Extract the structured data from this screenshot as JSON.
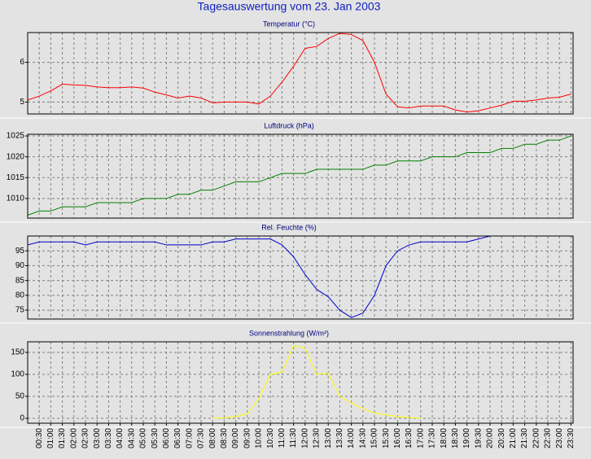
{
  "title": "Tagesauswertung vom 23. Jan 2003",
  "chart_data": [
    {
      "type": "line",
      "title": "Temperatur (°C)",
      "color": "#ff0000",
      "ylim": [
        4.7,
        6.75
      ],
      "yticks": [
        5,
        6
      ],
      "grid": true,
      "values": [
        5.05,
        5.15,
        5.28,
        5.45,
        5.43,
        5.42,
        5.38,
        5.36,
        5.36,
        5.38,
        5.35,
        5.25,
        5.18,
        5.1,
        5.15,
        5.1,
        4.98,
        5.0,
        5.0,
        5.0,
        4.95,
        5.15,
        5.5,
        5.9,
        6.35,
        6.4,
        6.6,
        6.73,
        6.7,
        6.55,
        6.0,
        5.2,
        4.88,
        4.85,
        4.9,
        4.9,
        4.9,
        4.8,
        4.75,
        4.78,
        4.85,
        4.92,
        5.02,
        5.02,
        5.05,
        5.1,
        5.12,
        5.2
      ]
    },
    {
      "type": "line",
      "title": "Luftdruck (hPa)",
      "color": "#008000",
      "ylim": [
        1005.3,
        1025.4
      ],
      "yticks": [
        1010,
        1015,
        1020,
        1025
      ],
      "grid": true,
      "values": [
        1006,
        1007,
        1007,
        1008,
        1008,
        1008,
        1009,
        1009,
        1009,
        1009,
        1010,
        1010,
        1010,
        1011,
        1011,
        1012,
        1012,
        1013,
        1014,
        1014,
        1014,
        1015,
        1016,
        1016,
        1016,
        1017,
        1017,
        1017,
        1017,
        1017,
        1018,
        1018,
        1019,
        1019,
        1019,
        1020,
        1020,
        1020,
        1021,
        1021,
        1021,
        1022,
        1022,
        1023,
        1023,
        1024,
        1024,
        1025
      ]
    },
    {
      "type": "line",
      "title": "Rel. Feuchte (%)",
      "color": "#0000cc",
      "ylim": [
        72,
        100
      ],
      "yticks": [
        75,
        80,
        85,
        90,
        95
      ],
      "grid": true,
      "values": [
        97,
        98,
        98,
        98,
        98,
        97,
        98,
        98,
        98,
        98,
        98,
        98,
        97,
        97,
        97,
        97,
        98,
        98,
        99,
        99,
        99,
        99,
        97,
        93,
        87,
        82,
        79.5,
        75,
        72.5,
        74,
        80,
        90,
        95,
        97,
        98,
        98,
        98,
        98,
        98,
        99,
        100,
        100,
        100,
        100,
        100,
        100,
        100,
        100
      ]
    },
    {
      "type": "line",
      "title": "Sonnenstrahlung (W/m²)",
      "color": "#ffff00",
      "ylim": [
        -11,
        174
      ],
      "yticks": [
        0,
        50,
        100,
        150
      ],
      "grid": true,
      "categories": [
        null,
        "00:30",
        "01:00",
        "01:30",
        "02:00",
        "02:30",
        "03:00",
        "03:30",
        "04:00",
        "04:30",
        "05:00",
        "05:30",
        "06:00",
        "06:30",
        "07:00",
        "07:30",
        "08:00",
        "08:30",
        "09:00",
        "09:30",
        "10:00",
        "10:30",
        "11:00",
        "11:30",
        "12:00",
        "12:30",
        "13:00",
        "13:30",
        "14:00",
        "14:30",
        "15:00",
        "15:30",
        "16:00",
        "16:30",
        "17:00",
        "17:30",
        "18:00",
        "18:30",
        "19:00",
        "19:30",
        "20:00",
        "20:30",
        "21:00",
        "21:30",
        "22:00",
        "22:30",
        "23:00",
        "23:30"
      ],
      "values": [
        null,
        null,
        null,
        null,
        null,
        null,
        null,
        null,
        null,
        null,
        null,
        null,
        null,
        null,
        null,
        null,
        0,
        1,
        4,
        10,
        45,
        100,
        105,
        165,
        160,
        100,
        103,
        50,
        35,
        22,
        12,
        8,
        4,
        2,
        0,
        null,
        null,
        null,
        null,
        null,
        null,
        null,
        null,
        null,
        null,
        null,
        null,
        null
      ]
    }
  ]
}
